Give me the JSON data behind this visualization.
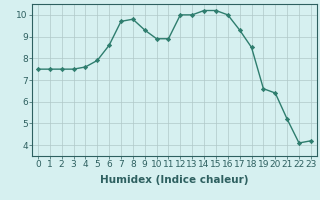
{
  "x": [
    0,
    1,
    2,
    3,
    4,
    5,
    6,
    7,
    8,
    9,
    10,
    11,
    12,
    13,
    14,
    15,
    16,
    17,
    18,
    19,
    20,
    21,
    22,
    23
  ],
  "y": [
    7.5,
    7.5,
    7.5,
    7.5,
    7.6,
    7.9,
    8.6,
    9.7,
    9.8,
    9.3,
    8.9,
    8.9,
    10.0,
    10.0,
    10.2,
    10.2,
    10.0,
    9.3,
    8.5,
    6.6,
    6.4,
    5.2,
    4.1,
    4.2
  ],
  "line_color": "#2e7d6e",
  "marker": "D",
  "marker_size": 2.2,
  "bg_color": "#d6f0f0",
  "grid_major_color": "#b0c8c8",
  "grid_minor_color": "#c8dede",
  "xlabel": "Humidex (Indice chaleur)",
  "xlim": [
    -0.5,
    23.5
  ],
  "ylim": [
    3.5,
    10.5
  ],
  "yticks": [
    4,
    5,
    6,
    7,
    8,
    9,
    10
  ],
  "xticks": [
    0,
    1,
    2,
    3,
    4,
    5,
    6,
    7,
    8,
    9,
    10,
    11,
    12,
    13,
    14,
    15,
    16,
    17,
    18,
    19,
    20,
    21,
    22,
    23
  ],
  "xlabel_fontsize": 7.5,
  "tick_fontsize": 6.5,
  "line_width": 1.0,
  "text_color": "#2e6060"
}
